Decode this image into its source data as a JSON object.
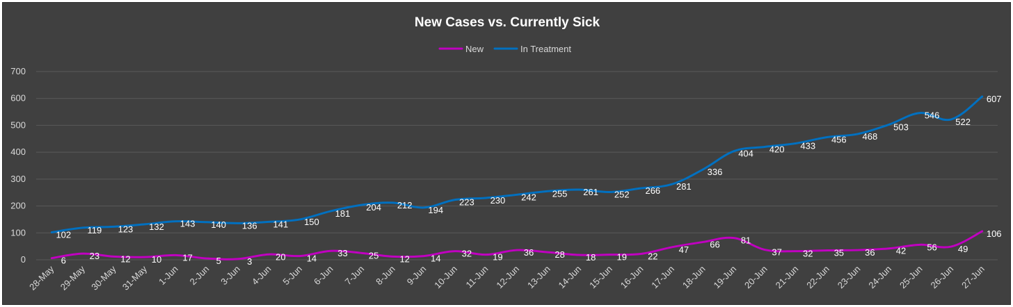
{
  "chart_data": {
    "type": "line",
    "title": "New Cases vs. Currently Sick",
    "xlabel": "",
    "ylabel": "",
    "ylim": [
      0,
      700
    ],
    "yticks": [
      0,
      100,
      200,
      300,
      400,
      500,
      600,
      700
    ],
    "grid": true,
    "legend_position": "top-center",
    "categories": [
      "28-May",
      "29-May",
      "30-May",
      "31-May",
      "1-Jun",
      "2-Jun",
      "3-Jun",
      "4-Jun",
      "5-Jun",
      "6-Jun",
      "7-Jun",
      "8-Jun",
      "9-Jun",
      "10-Jun",
      "11-Jun",
      "12-Jun",
      "13-Jun",
      "14-Jun",
      "15-Jun",
      "16-Jun",
      "17-Jun",
      "18-Jun",
      "19-Jun",
      "20-Jun",
      "21-Jun",
      "22-Jun",
      "23-Jun",
      "24-Jun",
      "25-Jun",
      "26-Jun",
      "27-Jun"
    ],
    "series": [
      {
        "name": "New",
        "color": "#c000c0",
        "values": [
          6,
          23,
          12,
          10,
          17,
          5,
          3,
          20,
          14,
          33,
          25,
          12,
          14,
          32,
          19,
          36,
          28,
          18,
          19,
          22,
          47,
          66,
          81,
          37,
          32,
          35,
          36,
          42,
          56,
          49,
          106
        ]
      },
      {
        "name": "In Treatment",
        "color": "#0070c0",
        "values": [
          102,
          119,
          123,
          132,
          143,
          140,
          136,
          141,
          150,
          181,
          204,
          212,
          194,
          223,
          230,
          242,
          255,
          261,
          252,
          266,
          281,
          336,
          404,
          420,
          433,
          456,
          468,
          503,
          546,
          522,
          607
        ]
      }
    ]
  }
}
